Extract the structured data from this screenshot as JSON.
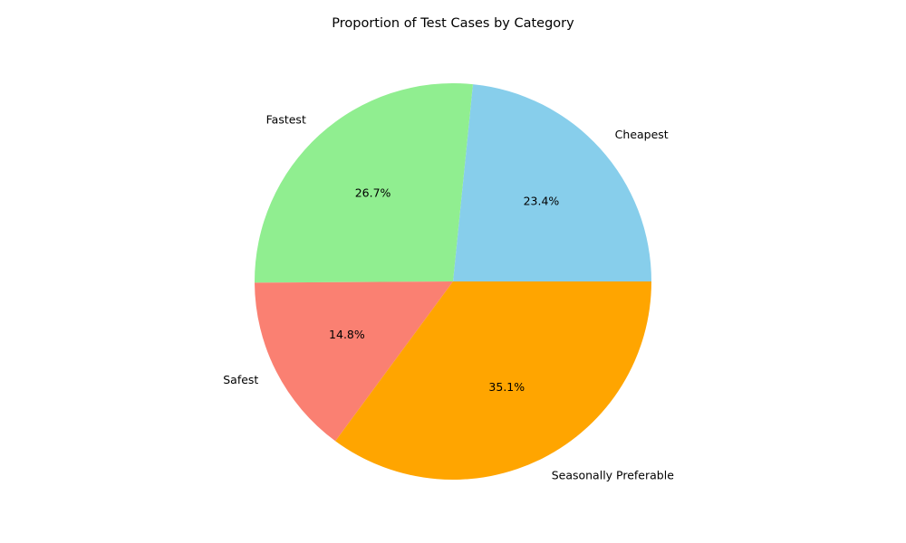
{
  "chart_data": {
    "type": "pie",
    "title": "Proportion of Test Cases by Category",
    "categories": [
      "Cheapest",
      "Fastest",
      "Safest",
      "Seasonally Preferable"
    ],
    "values": [
      23.4,
      26.7,
      14.8,
      35.1
    ],
    "percent_labels": [
      "23.4%",
      "26.7%",
      "14.8%",
      "35.1%"
    ],
    "colors": [
      "#87ceeb",
      "#90ee90",
      "#fa8072",
      "#ffa500"
    ],
    "start_angle_deg": 0,
    "direction": "counterclockwise",
    "legend": "none"
  }
}
